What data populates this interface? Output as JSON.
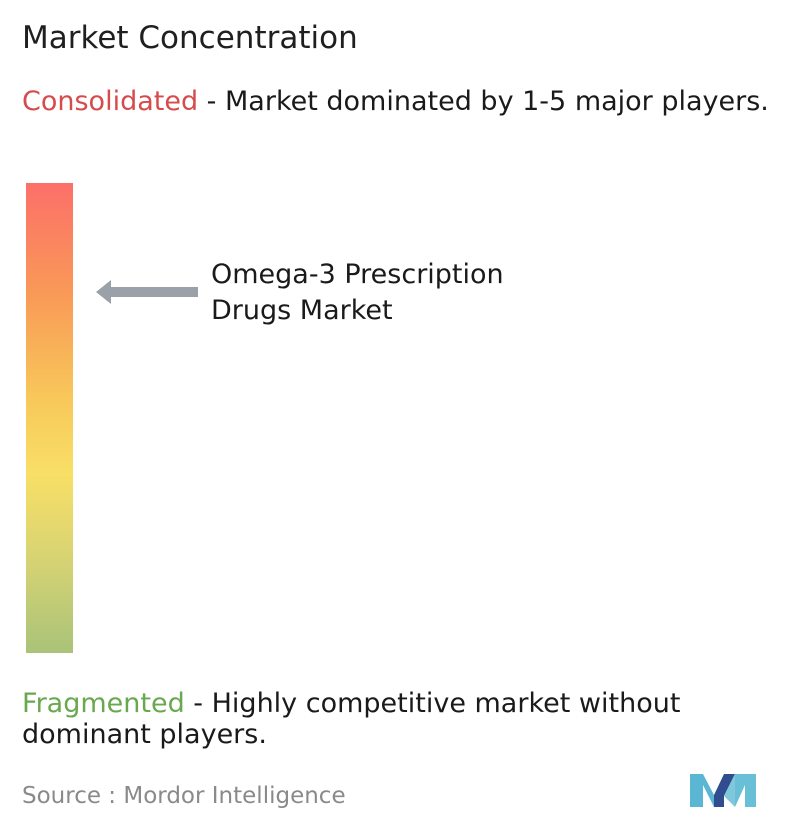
{
  "title": "Market Concentration",
  "consolidated": {
    "label": "Consolidated",
    "description": "  - Market dominated by 1-5 major players."
  },
  "market": {
    "name": "Omega-3 Prescription Drugs Market"
  },
  "fragmented": {
    "label": "Fragmented",
    "description": "   - Highly competitive market without dominant players."
  },
  "source": {
    "text": "Source :  Mordor Intelligence"
  },
  "colors": {
    "consolidated": "#d64b4b",
    "fragmented": "#6aa84f",
    "bar_top": "#fc6f69",
    "bar_middle": "#f8df66",
    "bar_bottom": "#a9c379",
    "arrow": "#9ba1a8"
  },
  "icons": {
    "arrow": "left-arrow-icon",
    "logo": "mordor-intelligence-logo"
  },
  "chart_data": {
    "type": "gradient-scale",
    "title": "Market Concentration",
    "scale_top_label": "Consolidated",
    "scale_bottom_label": "Fragmented",
    "marker_label": "Omega-3 Prescription Drugs Market",
    "marker_position_from_top": 0.23
  }
}
